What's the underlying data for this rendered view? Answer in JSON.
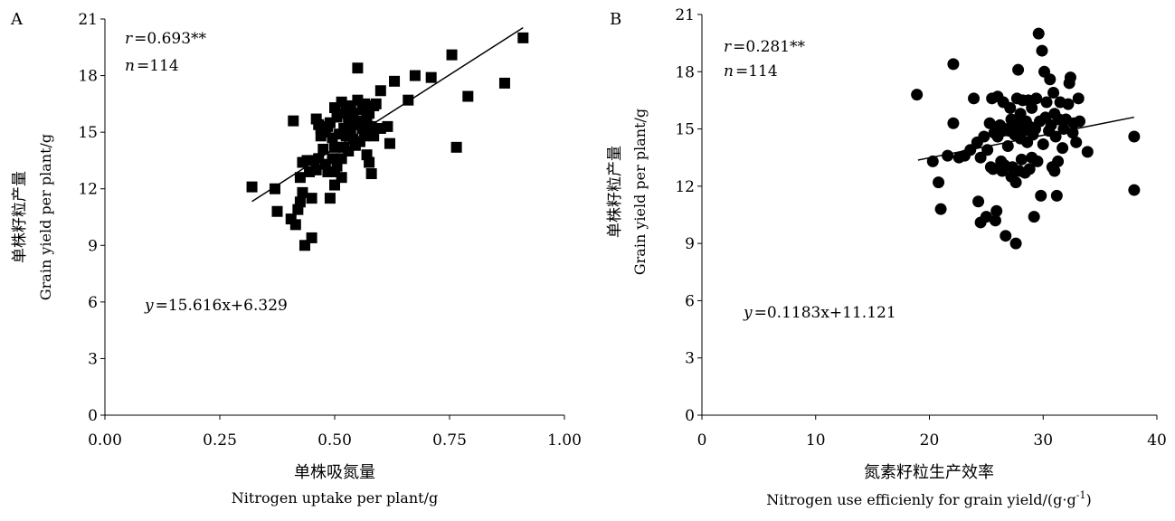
{
  "chart_data": [
    {
      "panel": "A",
      "type": "scatter",
      "marker": "square",
      "xlabel_zh": "单株吸氮量",
      "xlabel_en": "Nitrogen uptake per plant/g",
      "ylabel_zh": "单株籽粒产量",
      "ylabel_en": "Grain yield per plant/g",
      "xlim": [
        0,
        1
      ],
      "ylim": [
        0,
        21
      ],
      "xticks": [
        "0.00",
        "0.25",
        "0.50",
        "0.75",
        "1.00"
      ],
      "yticks": [
        "0",
        "3",
        "6",
        "9",
        "12",
        "15",
        "18",
        "21"
      ],
      "stats": {
        "r": "0.693**",
        "n": "114"
      },
      "equation": "=15.616x+6.329",
      "trendline": {
        "slope": 15.616,
        "intercept": 6.329,
        "x_from": 0.32,
        "x_to": 0.91
      },
      "points": [
        [
          0.32,
          12.1
        ],
        [
          0.37,
          12.0
        ],
        [
          0.375,
          10.8
        ],
        [
          0.405,
          10.4
        ],
        [
          0.41,
          15.6
        ],
        [
          0.415,
          10.1
        ],
        [
          0.42,
          10.9
        ],
        [
          0.425,
          12.6
        ],
        [
          0.425,
          11.3
        ],
        [
          0.43,
          13.4
        ],
        [
          0.43,
          11.8
        ],
        [
          0.435,
          9.0
        ],
        [
          0.44,
          13.5
        ],
        [
          0.445,
          12.9
        ],
        [
          0.45,
          11.5
        ],
        [
          0.45,
          9.4
        ],
        [
          0.455,
          13.5
        ],
        [
          0.46,
          13.0
        ],
        [
          0.46,
          15.7
        ],
        [
          0.465,
          15.4
        ],
        [
          0.465,
          13.6
        ],
        [
          0.47,
          14.8
        ],
        [
          0.47,
          15.2
        ],
        [
          0.475,
          14.1
        ],
        [
          0.48,
          15.0
        ],
        [
          0.48,
          13.3
        ],
        [
          0.485,
          15.3
        ],
        [
          0.485,
          12.9
        ],
        [
          0.49,
          11.5
        ],
        [
          0.49,
          15.5
        ],
        [
          0.495,
          14.7
        ],
        [
          0.495,
          13.6
        ],
        [
          0.5,
          16.3
        ],
        [
          0.5,
          14.2
        ],
        [
          0.5,
          12.9
        ],
        [
          0.5,
          12.2
        ],
        [
          0.505,
          15.8
        ],
        [
          0.505,
          13.2
        ],
        [
          0.51,
          14.9
        ],
        [
          0.51,
          16.0
        ],
        [
          0.515,
          16.6
        ],
        [
          0.515,
          13.6
        ],
        [
          0.515,
          12.6
        ],
        [
          0.52,
          15.2
        ],
        [
          0.52,
          14.2
        ],
        [
          0.525,
          16.2
        ],
        [
          0.525,
          14.8
        ],
        [
          0.53,
          15.5
        ],
        [
          0.53,
          14.0
        ],
        [
          0.53,
          15.9
        ],
        [
          0.535,
          16.4
        ],
        [
          0.535,
          15.0
        ],
        [
          0.54,
          16.0
        ],
        [
          0.54,
          14.6
        ],
        [
          0.545,
          14.3
        ],
        [
          0.545,
          15.4
        ],
        [
          0.55,
          16.7
        ],
        [
          0.55,
          18.4
        ],
        [
          0.55,
          15.6
        ],
        [
          0.555,
          14.5
        ],
        [
          0.56,
          16.2
        ],
        [
          0.56,
          15.2
        ],
        [
          0.565,
          16.5
        ],
        [
          0.565,
          14.8
        ],
        [
          0.57,
          15.7
        ],
        [
          0.57,
          13.8
        ],
        [
          0.575,
          16.0
        ],
        [
          0.575,
          13.4
        ],
        [
          0.58,
          15.3
        ],
        [
          0.58,
          12.8
        ],
        [
          0.585,
          16.4
        ],
        [
          0.585,
          14.8
        ],
        [
          0.59,
          16.5
        ],
        [
          0.6,
          17.2
        ],
        [
          0.6,
          15.2
        ],
        [
          0.615,
          15.3
        ],
        [
          0.62,
          14.4
        ],
        [
          0.63,
          17.7
        ],
        [
          0.66,
          16.7
        ],
        [
          0.675,
          18.0
        ],
        [
          0.71,
          17.9
        ],
        [
          0.755,
          19.1
        ],
        [
          0.765,
          14.2
        ],
        [
          0.79,
          16.9
        ],
        [
          0.87,
          17.6
        ],
        [
          0.91,
          20.0
        ]
      ]
    },
    {
      "panel": "B",
      "type": "scatter",
      "marker": "circle",
      "xlabel_zh": "氮素籽粒生产效率",
      "xlabel_en": "Nitrogen use efficienly for grain yield/(g·g",
      "xlabel_en_sup": "-1",
      "xlabel_en_end": ")",
      "ylabel_zh": "单株籽粒产量",
      "ylabel_en": "Grain yield per plant/g",
      "xlim": [
        0,
        40
      ],
      "ylim": [
        0,
        21
      ],
      "xticks": [
        "0",
        "10",
        "20",
        "30",
        "40"
      ],
      "yticks": [
        "0",
        "3",
        "6",
        "9",
        "12",
        "15",
        "18",
        "21"
      ],
      "stats": {
        "r": "0.281**",
        "n": "114"
      },
      "equation": "=0.1183x+11.121",
      "trendline": {
        "slope": 0.1183,
        "intercept": 11.121,
        "x_from": 19.0,
        "x_to": 38.0
      },
      "points": [
        [
          18.9,
          16.8
        ],
        [
          20.3,
          13.3
        ],
        [
          20.8,
          12.2
        ],
        [
          21.0,
          10.8
        ],
        [
          21.6,
          13.6
        ],
        [
          22.1,
          18.4
        ],
        [
          22.1,
          15.3
        ],
        [
          22.6,
          13.5
        ],
        [
          23.1,
          13.6
        ],
        [
          23.6,
          13.9
        ],
        [
          23.9,
          16.6
        ],
        [
          24.2,
          14.3
        ],
        [
          24.3,
          11.2
        ],
        [
          24.5,
          13.5
        ],
        [
          24.5,
          10.1
        ],
        [
          24.8,
          14.6
        ],
        [
          25.0,
          10.4
        ],
        [
          25.1,
          13.9
        ],
        [
          25.3,
          15.3
        ],
        [
          25.4,
          13.0
        ],
        [
          25.5,
          16.6
        ],
        [
          25.6,
          12.9
        ],
        [
          25.7,
          14.8
        ],
        [
          25.8,
          10.2
        ],
        [
          25.9,
          10.7
        ],
        [
          26.0,
          16.7
        ],
        [
          26.0,
          14.6
        ],
        [
          26.2,
          15.2
        ],
        [
          26.3,
          13.3
        ],
        [
          26.4,
          12.8
        ],
        [
          26.5,
          14.9
        ],
        [
          26.5,
          16.4
        ],
        [
          26.6,
          13.1
        ],
        [
          26.7,
          9.4
        ],
        [
          26.8,
          15.0
        ],
        [
          26.9,
          14.1
        ],
        [
          27.0,
          14.9
        ],
        [
          27.1,
          16.1
        ],
        [
          27.2,
          12.5
        ],
        [
          27.2,
          15.5
        ],
        [
          27.3,
          13.0
        ],
        [
          27.4,
          15.0
        ],
        [
          27.5,
          14.7
        ],
        [
          27.6,
          12.2
        ],
        [
          27.6,
          9.0
        ],
        [
          27.7,
          16.6
        ],
        [
          27.8,
          15.4
        ],
        [
          27.8,
          18.1
        ],
        [
          27.9,
          12.8
        ],
        [
          28.0,
          14.5
        ],
        [
          28.0,
          15.8
        ],
        [
          28.1,
          13.4
        ],
        [
          28.2,
          16.5
        ],
        [
          28.3,
          14.9
        ],
        [
          28.4,
          12.7
        ],
        [
          28.5,
          15.4
        ],
        [
          28.6,
          14.3
        ],
        [
          28.7,
          16.5
        ],
        [
          28.8,
          12.9
        ],
        [
          28.9,
          15.1
        ],
        [
          29.0,
          16.1
        ],
        [
          29.0,
          13.5
        ],
        [
          29.1,
          14.7
        ],
        [
          29.2,
          10.4
        ],
        [
          29.3,
          15.0
        ],
        [
          29.4,
          16.6
        ],
        [
          29.5,
          13.3
        ],
        [
          29.6,
          20.0
        ],
        [
          29.7,
          15.4
        ],
        [
          29.8,
          11.5
        ],
        [
          29.9,
          19.1
        ],
        [
          30.0,
          14.2
        ],
        [
          30.1,
          18.0
        ],
        [
          30.2,
          15.6
        ],
        [
          30.3,
          16.4
        ],
        [
          30.5,
          14.9
        ],
        [
          30.6,
          17.6
        ],
        [
          30.7,
          15.2
        ],
        [
          30.8,
          13.0
        ],
        [
          30.9,
          16.9
        ],
        [
          31.0,
          15.8
        ],
        [
          31.0,
          12.8
        ],
        [
          31.1,
          14.6
        ],
        [
          31.2,
          11.5
        ],
        [
          31.3,
          13.3
        ],
        [
          31.4,
          15.5
        ],
        [
          31.5,
          16.4
        ],
        [
          31.7,
          14.0
        ],
        [
          31.8,
          15.0
        ],
        [
          32.0,
          15.5
        ],
        [
          32.2,
          16.3
        ],
        [
          32.3,
          17.4
        ],
        [
          32.4,
          17.7
        ],
        [
          32.6,
          14.8
        ],
        [
          32.7,
          15.3
        ],
        [
          32.9,
          14.3
        ],
        [
          33.1,
          16.6
        ],
        [
          33.2,
          15.4
        ],
        [
          33.9,
          13.8
        ],
        [
          38.0,
          14.6
        ],
        [
          38.0,
          11.8
        ]
      ]
    }
  ]
}
